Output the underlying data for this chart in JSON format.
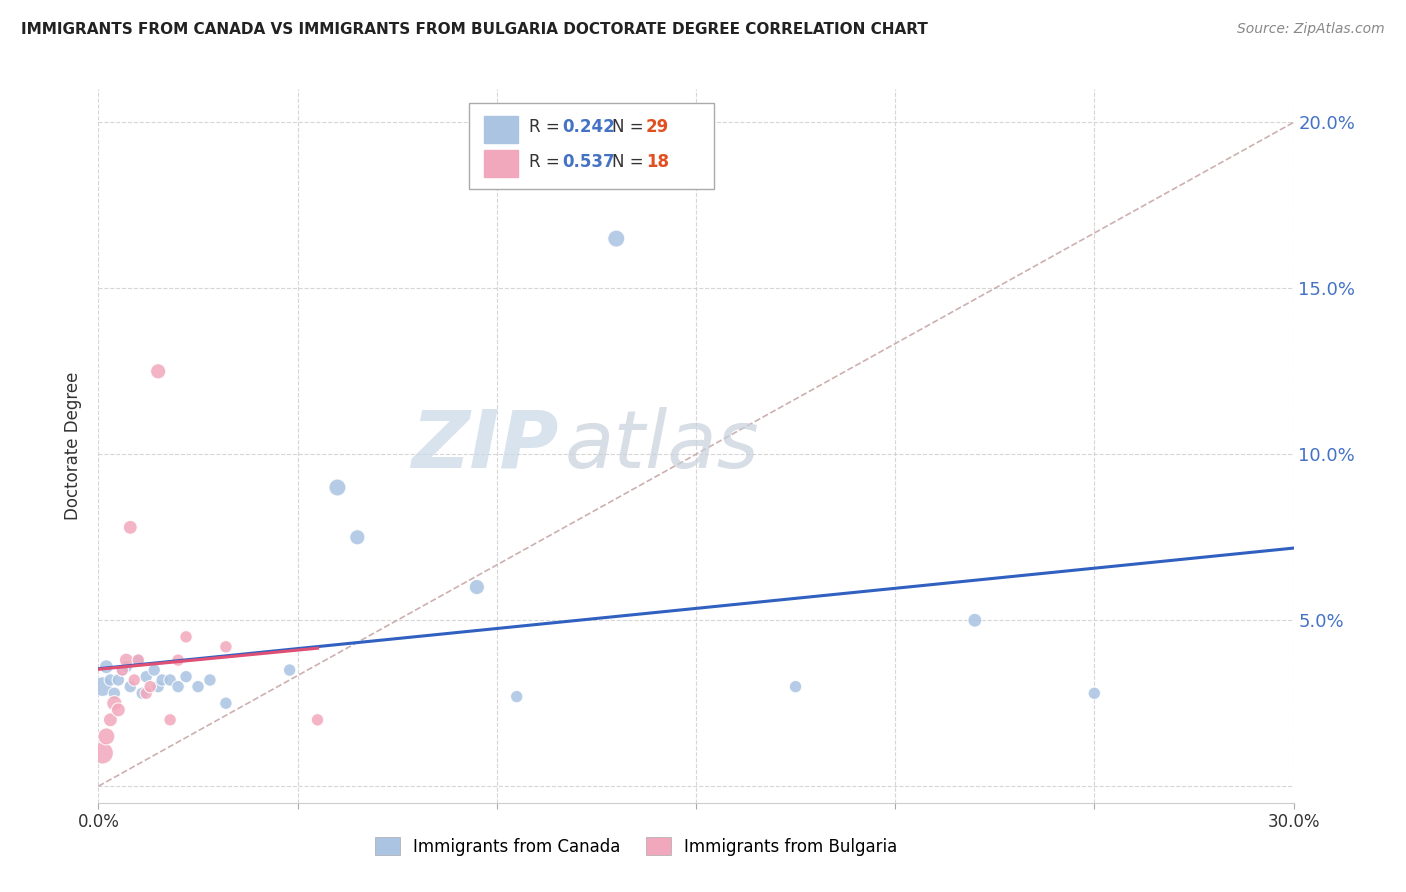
{
  "title": "IMMIGRANTS FROM CANADA VS IMMIGRANTS FROM BULGARIA DOCTORATE DEGREE CORRELATION CHART",
  "source": "Source: ZipAtlas.com",
  "ylabel": "Doctorate Degree",
  "xmin": 0.0,
  "xmax": 0.3,
  "ymin": -0.005,
  "ymax": 0.21,
  "yticks": [
    0.0,
    0.05,
    0.1,
    0.15,
    0.2
  ],
  "ytick_labels": [
    "",
    "5.0%",
    "10.0%",
    "15.0%",
    "20.0%"
  ],
  "xticks": [
    0.0,
    0.05,
    0.1,
    0.15,
    0.2,
    0.25,
    0.3
  ],
  "xtick_labels": [
    "0.0%",
    "",
    "",
    "",
    "",
    "",
    "30.0%"
  ],
  "R_canada": 0.242,
  "N_canada": 29,
  "R_bulgaria": 0.537,
  "N_bulgaria": 18,
  "canada_color": "#aac4e2",
  "bulgaria_color": "#f2a8bc",
  "canada_line_color": "#3060c0",
  "bulgaria_line_color": "#e05075",
  "diagonal_color": "#c8a8a8",
  "canada_points_x": [
    0.001,
    0.002,
    0.003,
    0.004,
    0.005,
    0.006,
    0.007,
    0.008,
    0.01,
    0.011,
    0.012,
    0.014,
    0.015,
    0.016,
    0.018,
    0.02,
    0.022,
    0.025,
    0.028,
    0.032,
    0.048,
    0.06,
    0.065,
    0.095,
    0.105,
    0.13,
    0.175,
    0.22,
    0.25
  ],
  "canada_points_y": [
    0.03,
    0.036,
    0.032,
    0.028,
    0.032,
    0.035,
    0.036,
    0.03,
    0.038,
    0.028,
    0.033,
    0.035,
    0.03,
    0.032,
    0.032,
    0.03,
    0.033,
    0.03,
    0.032,
    0.025,
    0.035,
    0.09,
    0.075,
    0.06,
    0.027,
    0.165,
    0.03,
    0.05,
    0.028
  ],
  "bulgaria_points_x": [
    0.001,
    0.002,
    0.003,
    0.004,
    0.005,
    0.006,
    0.007,
    0.008,
    0.009,
    0.01,
    0.012,
    0.013,
    0.015,
    0.018,
    0.02,
    0.022,
    0.032,
    0.055
  ],
  "bulgaria_points_y": [
    0.01,
    0.015,
    0.02,
    0.025,
    0.023,
    0.035,
    0.038,
    0.078,
    0.032,
    0.038,
    0.028,
    0.03,
    0.125,
    0.02,
    0.038,
    0.045,
    0.042,
    0.02
  ],
  "canada_bubble_sizes": [
    200,
    100,
    80,
    80,
    80,
    80,
    80,
    80,
    80,
    80,
    80,
    80,
    80,
    80,
    80,
    80,
    80,
    80,
    80,
    80,
    80,
    150,
    120,
    120,
    80,
    150,
    80,
    100,
    80
  ],
  "bulgaria_bubble_sizes": [
    250,
    150,
    100,
    120,
    100,
    80,
    100,
    100,
    80,
    80,
    80,
    80,
    120,
    80,
    80,
    80,
    80,
    80
  ],
  "legend_R_color": "#4472c4",
  "legend_N_color": "#e05020",
  "watermark_zip_color": "#c8d8e8",
  "watermark_atlas_color": "#c8d0dc"
}
